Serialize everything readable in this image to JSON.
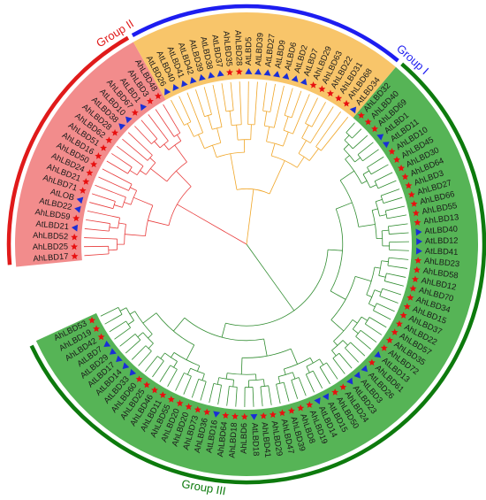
{
  "groups": [
    {
      "id": "g2",
      "label": "Group II",
      "color": "#e01a1a",
      "fill": "#f28c8c",
      "branch": "#e83b3b",
      "leaves": [
        "AhLBD17",
        "AhLBD25",
        "AhLBD52",
        "AtLBD21",
        "AhLBD59",
        "AtLBD22",
        "AtLOB",
        "AhLBD71",
        "AhLBD21",
        "AhLBD24",
        "AhLBD50",
        "AhLBD16",
        "AhLBD51",
        "AhLBD62",
        "AhLBD28",
        "AtLBD38",
        "AtLBD10",
        "AhLBD67",
        "AtLBD1",
        "AhLBD3",
        "AhLBD48"
      ]
    },
    {
      "id": "g1",
      "label": "Group I",
      "color": "#1d1df0",
      "fill": "#f8c56a",
      "branch": "#f0a526",
      "leaves": [
        "AtLBD26",
        "AtLBD40",
        "AtLBD41",
        "AtLBD42",
        "AtLBD39",
        "AtLBD38",
        "AtLBD37",
        "AhLBD35",
        "AhLBD28",
        "AtLBD5",
        "AtLBD39",
        "AtLBD27",
        "AtLBD9",
        "AtLBD6",
        "AtLBD2",
        "AtLBD7",
        "AhLBD29",
        "AhLBD63",
        "AhLBD22",
        "AhLBD31",
        "AhLBD68",
        "AtLBD34"
      ]
    },
    {
      "id": "g3",
      "label": "Group III",
      "color": "#0d7a0d",
      "fill": "#56b456",
      "branch": "#2e8b2e",
      "leaves": [
        "AhLBD32",
        "AhLBD40",
        "AhLBD69",
        "AtLBD1",
        "AtLBD11",
        "AhLBD10",
        "AhLBD45",
        "AhLBD30",
        "AhLBD64",
        "AhLBD3",
        "AhLBD27",
        "AhLBD66",
        "AhLBD55",
        "AhLBD13",
        "AtLBD40",
        "AtLBD12",
        "AtLBD41",
        "AhLBD23",
        "AhLBD58",
        "AhLBD12",
        "AhLBD70",
        "AhLBD34",
        "AhLBD15",
        "AhLBD37",
        "AhLBD22",
        "AhLBD57",
        "AhLBD35",
        "AhLBD72",
        "AtLBD13",
        "AhLBD61",
        "AtLBD26",
        "AtLBD3",
        "AtLBD23",
        "AhLBD24",
        "AhLBD50",
        "AtLBD15",
        "AtLBD14",
        "AhLBD19",
        "AhLBD8",
        "AhLBD39",
        "AhLBD47",
        "AhLBD29",
        "AhLBD41",
        "AtLBD18",
        "AhLBD6",
        "AhLBD18",
        "AhLBD64",
        "AtLBD16",
        "AhLBD36",
        "AhLBD73",
        "AhLBD20",
        "AhLBD20",
        "AhLBD55",
        "AhLBD11",
        "AhLBD46",
        "AhLBD25",
        "AhLBD60",
        "AtLBD33",
        "AtLBD14",
        "AtLBD17",
        "AtLBD29",
        "AtLBD7",
        "AhLBD42",
        "AhLBD19",
        "AhLBD53"
      ]
    }
  ],
  "markers": {
    "Ah": "red-star-icon",
    "At": "blue-triangle-icon"
  }
}
